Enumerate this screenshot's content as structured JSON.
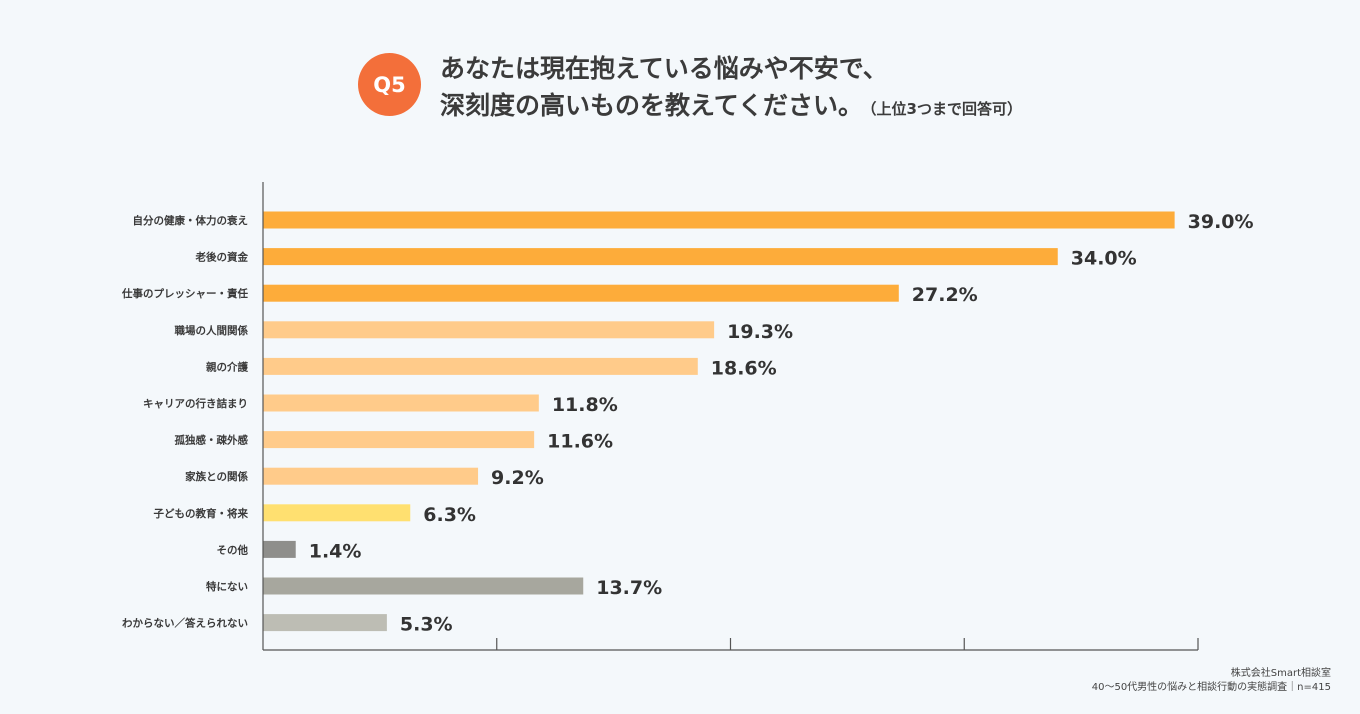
{
  "header": {
    "badge": "Q5",
    "title_line1": "あなたは現在抱えている悩みや不安で、",
    "title_line2": "深刻度の高いものを教えてください。",
    "title_note": "（上位3つまで回答可）"
  },
  "chart_data": {
    "type": "bar",
    "orientation": "horizontal",
    "unit": "%",
    "xlim": [
      0,
      40
    ],
    "categories": [
      "自分の健康・体力の衰え",
      "老後の資金",
      "仕事のプレッシャー・責任",
      "職場の人間関係",
      "親の介護",
      "キャリアの行き詰まり",
      "孤独感・疎外感",
      "家族との関係",
      "子どもの教育・将来",
      "その他",
      "特にない",
      "わからない／答えられない"
    ],
    "values": [
      39.0,
      34.0,
      27.2,
      19.3,
      18.6,
      11.8,
      11.6,
      9.2,
      6.3,
      1.4,
      13.7,
      5.3
    ],
    "value_labels": [
      "39.0%",
      "34.0%",
      "27.2%",
      "19.3%",
      "18.6%",
      "11.8%",
      "11.6%",
      "9.2%",
      "6.3%",
      "1.4%",
      "13.7%",
      "5.3%"
    ],
    "bar_colors": [
      "#fdac3a",
      "#fdac3a",
      "#fdac3a",
      "#ffcb8a",
      "#ffcb8a",
      "#ffcb8a",
      "#ffcb8a",
      "#ffcb8a",
      "#ffe070",
      "#8e8e8b",
      "#a7a79e",
      "#bdbdb4"
    ],
    "grid": false
  },
  "footer": {
    "source_line1": "株式会社Smart相談室",
    "source_line2": "40〜50代男性の悩みと相談行動の実態調査｜n=415"
  }
}
